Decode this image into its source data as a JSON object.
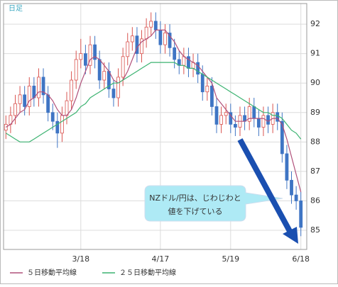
{
  "chart_data": {
    "type": "candlestick",
    "label": "日足",
    "categories": [
      null,
      null,
      null,
      null,
      null,
      null,
      null,
      null,
      null,
      null,
      null,
      null,
      null,
      null,
      null,
      null,
      "3/18",
      null,
      null,
      null,
      null,
      null,
      null,
      null,
      null,
      null,
      null,
      null,
      null,
      null,
      null,
      null,
      null,
      "4/17",
      null,
      null,
      null,
      null,
      null,
      null,
      null,
      null,
      null,
      null,
      null,
      null,
      null,
      null,
      "5/19",
      null,
      null,
      null,
      null,
      null,
      null,
      null,
      null,
      null,
      null,
      null,
      null,
      null,
      null,
      "6/18"
    ],
    "open": [
      88.4,
      88.6,
      88.9,
      89.3,
      89.6,
      89.2,
      89.9,
      89.5,
      90.2,
      89.6,
      89.0,
      88.7,
      88.3,
      88.9,
      89.4,
      90.1,
      90.8,
      91.0,
      90.6,
      91.3,
      90.8,
      90.1,
      90.4,
      89.8,
      89.5,
      90.2,
      90.9,
      91.4,
      91.6,
      91.0,
      91.5,
      91.9,
      92.1,
      91.8,
      91.3,
      91.7,
      91.2,
      90.8,
      90.6,
      90.9,
      90.5,
      90.7,
      90.3,
      89.7,
      89.9,
      89.2,
      88.6,
      88.9,
      89.0,
      88.6,
      88.5,
      88.9,
      88.7,
      89.2,
      88.8,
      88.5,
      88.9,
      88.6,
      89.0,
      88.7,
      87.6,
      86.7,
      86.2,
      86.0
    ],
    "high": [
      88.9,
      89.2,
      89.6,
      89.9,
      89.9,
      90.2,
      90.2,
      90.5,
      90.5,
      89.9,
      89.3,
      89.0,
      89.2,
      89.7,
      90.4,
      91.1,
      91.5,
      91.3,
      91.6,
      91.6,
      91.1,
      90.7,
      90.7,
      90.1,
      90.5,
      91.2,
      91.7,
      91.9,
      91.9,
      91.8,
      92.2,
      92.4,
      92.4,
      92.1,
      92.0,
      92.0,
      91.5,
      91.1,
      91.2,
      91.2,
      91.0,
      91.0,
      90.6,
      90.2,
      90.2,
      89.5,
      89.2,
      89.3,
      89.3,
      88.9,
      89.2,
      89.2,
      89.5,
      89.5,
      89.1,
      89.2,
      89.2,
      89.3,
      89.3,
      89.0,
      87.9,
      87.0,
      86.5,
      86.3
    ],
    "low": [
      88.1,
      88.3,
      88.6,
      89.0,
      88.9,
      88.9,
      89.2,
      89.2,
      89.3,
      88.7,
      88.4,
      87.8,
      88.0,
      88.6,
      89.1,
      89.8,
      90.5,
      90.3,
      90.3,
      90.5,
      89.8,
      89.8,
      89.5,
      89.2,
      89.2,
      89.9,
      90.6,
      91.1,
      90.7,
      90.7,
      91.2,
      91.6,
      91.5,
      91.0,
      91.0,
      90.9,
      90.5,
      90.3,
      90.3,
      90.2,
      90.2,
      90.0,
      89.4,
      89.4,
      88.9,
      88.3,
      88.3,
      88.6,
      88.3,
      88.2,
      88.2,
      88.4,
      88.4,
      88.5,
      88.2,
      88.2,
      88.3,
      88.3,
      88.4,
      87.3,
      86.4,
      85.9,
      85.7,
      84.8
    ],
    "close": [
      88.6,
      88.9,
      89.3,
      89.6,
      89.2,
      89.9,
      89.5,
      90.2,
      89.6,
      89.0,
      88.7,
      88.3,
      88.9,
      89.4,
      90.1,
      90.8,
      91.0,
      90.6,
      91.3,
      90.8,
      90.1,
      90.4,
      89.8,
      89.5,
      90.2,
      90.9,
      91.4,
      91.6,
      91.0,
      91.5,
      91.9,
      92.1,
      91.8,
      91.3,
      91.7,
      91.2,
      90.8,
      90.6,
      90.9,
      90.5,
      90.7,
      90.3,
      89.7,
      89.9,
      89.2,
      88.6,
      88.9,
      89.0,
      88.6,
      88.5,
      88.9,
      88.7,
      89.2,
      88.8,
      88.5,
      88.9,
      88.6,
      89.0,
      88.7,
      87.6,
      86.7,
      86.2,
      86.0,
      85.1
    ],
    "up_color": "#d9534f",
    "down_color": "#3f75c4",
    "series": [
      {
        "name": "５日移動平均線",
        "color": "#b0507a",
        "values": [
          88.5,
          88.6,
          88.8,
          89.0,
          89.1,
          89.4,
          89.5,
          89.7,
          89.7,
          89.6,
          89.4,
          89.1,
          88.9,
          88.9,
          89.1,
          89.5,
          90.0,
          90.4,
          90.8,
          90.9,
          90.8,
          90.6,
          90.4,
          90.1,
          90.0,
          90.1,
          90.4,
          90.8,
          91.2,
          91.4,
          91.5,
          91.6,
          91.8,
          91.8,
          91.8,
          91.6,
          91.4,
          91.1,
          90.9,
          90.8,
          90.7,
          90.6,
          90.4,
          90.2,
          90.0,
          89.5,
          89.3,
          89.1,
          88.9,
          88.7,
          88.7,
          88.7,
          88.8,
          88.8,
          88.8,
          88.8,
          88.7,
          88.8,
          88.8,
          88.6,
          88.1,
          87.5,
          86.9,
          86.3
        ]
      },
      {
        "name": "２５日移動平均線",
        "color": "#3cb371",
        "values": [
          88.3,
          88.2,
          88.1,
          88.0,
          88.0,
          88.0,
          88.1,
          88.2,
          88.3,
          88.4,
          88.5,
          88.6,
          88.7,
          88.8,
          88.9,
          89.0,
          89.2,
          89.3,
          89.5,
          89.6,
          89.7,
          89.8,
          89.9,
          90.0,
          90.0,
          90.1,
          90.2,
          90.3,
          90.4,
          90.5,
          90.6,
          90.7,
          90.7,
          90.7,
          90.7,
          90.7,
          90.7,
          90.6,
          90.6,
          90.5,
          90.5,
          90.4,
          90.3,
          90.2,
          90.1,
          90.0,
          89.9,
          89.8,
          89.7,
          89.6,
          89.5,
          89.4,
          89.3,
          89.2,
          89.1,
          89.0,
          89.0,
          88.9,
          88.9,
          88.8,
          88.6,
          88.4,
          88.3,
          88.1
        ]
      }
    ],
    "ylim": [
      84.35,
      92.7
    ],
    "yticks": [
      85,
      86,
      87,
      88,
      89,
      90,
      91,
      92
    ],
    "grid": true,
    "annotation": [
      "NZドル/円は、じわじわと",
      "値を下げている"
    ]
  }
}
